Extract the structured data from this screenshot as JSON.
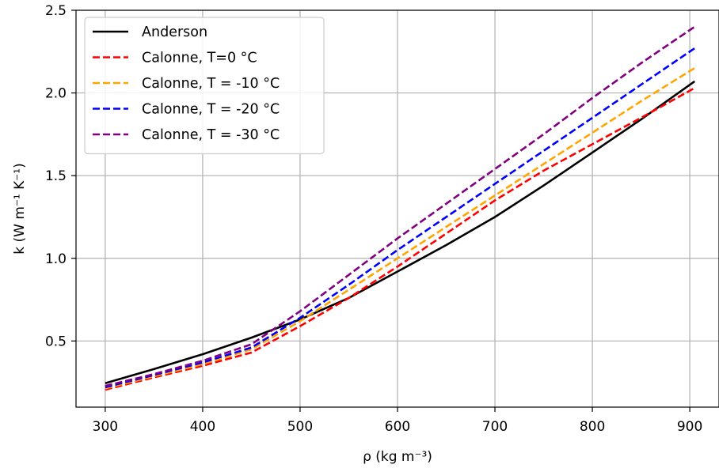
{
  "chart_data": {
    "type": "line",
    "xlabel": "ρ (kg m⁻³)",
    "ylabel": "k (W m⁻¹ K⁻¹)",
    "xlim": [
      270,
      930
    ],
    "ylim": [
      0.1,
      2.5
    ],
    "x_ticks": [
      "300",
      "400",
      "500",
      "600",
      "700",
      "800",
      "900"
    ],
    "y_ticks": [
      "0.5",
      "1.0",
      "1.5",
      "2.0",
      "2.5"
    ],
    "grid": true,
    "legend_position": "top-left",
    "series": [
      {
        "name": "Anderson",
        "color": "#000000",
        "dash": "solid",
        "x": [
          300,
          350,
          400,
          450,
          500,
          550,
          600,
          650,
          700,
          750,
          800,
          850,
          905
        ],
        "y": [
          0.245,
          0.33,
          0.42,
          0.52,
          0.63,
          0.76,
          0.92,
          1.08,
          1.25,
          1.44,
          1.64,
          1.84,
          2.07
        ]
      },
      {
        "name": "Calonne, T=0 °C",
        "color": "#ff0000",
        "dash": "dashed",
        "x": [
          300,
          350,
          400,
          450,
          500,
          550,
          600,
          650,
          700,
          750,
          800,
          850,
          905
        ],
        "y": [
          0.205,
          0.28,
          0.35,
          0.43,
          0.59,
          0.76,
          0.95,
          1.15,
          1.35,
          1.53,
          1.69,
          1.85,
          2.03
        ]
      },
      {
        "name": "Calonne, T = -10 °C",
        "color": "#ffa500",
        "dash": "dashed",
        "x": [
          300,
          350,
          400,
          450,
          500,
          550,
          600,
          650,
          700,
          750,
          800,
          850,
          905
        ],
        "y": [
          0.213,
          0.287,
          0.36,
          0.45,
          0.62,
          0.81,
          1.0,
          1.19,
          1.38,
          1.57,
          1.76,
          1.95,
          2.15
        ]
      },
      {
        "name": "Calonne, T = -20 °C",
        "color": "#0000ff",
        "dash": "dashed",
        "x": [
          300,
          350,
          400,
          450,
          500,
          550,
          600,
          650,
          700,
          750,
          800,
          850,
          905
        ],
        "y": [
          0.22,
          0.294,
          0.37,
          0.46,
          0.64,
          0.84,
          1.05,
          1.25,
          1.45,
          1.65,
          1.85,
          2.05,
          2.27
        ]
      },
      {
        "name": "Calonne, T = -30 °C",
        "color": "#800080",
        "dash": "dashed",
        "x": [
          300,
          350,
          400,
          450,
          500,
          550,
          600,
          650,
          700,
          750,
          800,
          850,
          905
        ],
        "y": [
          0.228,
          0.3,
          0.38,
          0.48,
          0.68,
          0.9,
          1.12,
          1.33,
          1.54,
          1.75,
          1.97,
          2.18,
          2.4
        ]
      }
    ]
  }
}
